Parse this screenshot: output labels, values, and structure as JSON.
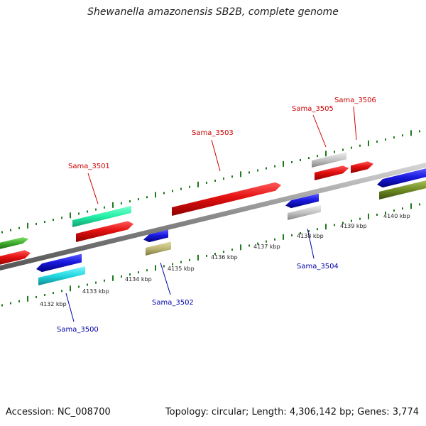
{
  "header": {
    "title": "Shewanella amazonensis SB2B, complete genome"
  },
  "footer": {
    "accession": "Accession: NC_008700",
    "summary": "Topology: circular; Length: 4,306,142 bp; Genes: 3,774"
  },
  "map": {
    "tick_labels": [
      "4132 kbp",
      "4133 kbp",
      "4134 kbp",
      "4135 kbp",
      "4136 kbp",
      "4137 kbp",
      "4138 kbp",
      "4139 kbp",
      "4140 kbp"
    ],
    "genes": [
      {
        "name": "Sama_3500",
        "strand": "reverse",
        "color": "#0000aa"
      },
      {
        "name": "Sama_3501",
        "strand": "forward",
        "color": "#cc0000"
      },
      {
        "name": "Sama_3502",
        "strand": "reverse",
        "color": "#0000aa"
      },
      {
        "name": "Sama_3503",
        "strand": "forward",
        "color": "#cc0000"
      },
      {
        "name": "Sama_3504",
        "strand": "reverse",
        "color": "#0000aa"
      },
      {
        "name": "Sama_3505",
        "strand": "forward",
        "color": "#cc0000"
      },
      {
        "name": "Sama_3506",
        "strand": "forward",
        "color": "#cc0000"
      }
    ],
    "feature_colors": {
      "forward_cds": "#e31010",
      "reverse_cds": "#1a1ae0",
      "mint": "#22f0a6",
      "cyan": "#22d8e0",
      "khaki": "#bdb676",
      "gray": "#c4c4c4",
      "green": "#3aa82a",
      "olive": "#6e8a22",
      "backbone": "#8a8a8a",
      "tick": "#1d7a1d"
    }
  }
}
